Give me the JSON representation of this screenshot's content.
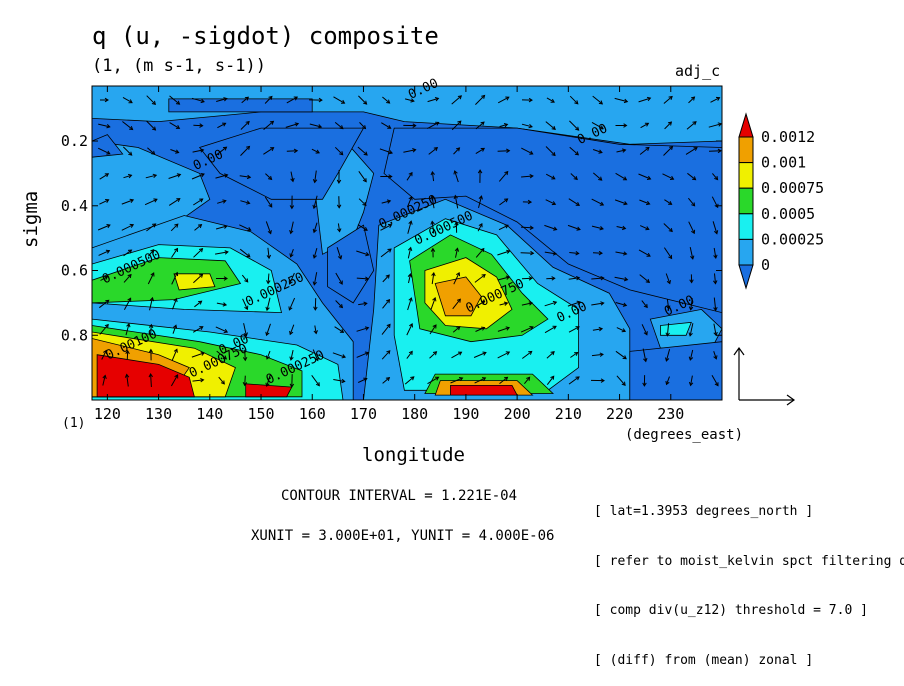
{
  "header": {
    "title": "q (u, -sigdot) composite",
    "units": "(1, (m s-1, s-1))",
    "tag": "adj_c"
  },
  "axes": {
    "xlabel": "longitude",
    "xunit": "(degrees_east)",
    "ylabel": "sigma",
    "scale_note": "(1)"
  },
  "footer": {
    "contour_interval": "CONTOUR INTERVAL = 1.221E-04",
    "xy_units": "XUNIT = 3.000E+01, YUNIT = 4.000E-06",
    "notes": [
      "[ lat=1.3953 degrees_north ]",
      "[ refer to moist_kelvin spct filtering data ]",
      "[ comp div(u_z12) threshold = 7.0 ]",
      "[ (diff) from (mean) zonal ]"
    ]
  },
  "colors": {
    "level_0": "#1a6fe0",
    "level_1": "#27a6f0",
    "level_2": "#19f0f0",
    "level_3": "#2ad82a",
    "level_4": "#f0f000",
    "level_5": "#f0a000",
    "level_6": "#e60000"
  },
  "chart_data": {
    "type": "heatmap",
    "title": "q (u, -sigdot) composite",
    "xlabel": "longitude",
    "ylabel": "sigma",
    "xlim": [
      117,
      240
    ],
    "ylim": [
      1.0,
      0.03
    ],
    "y_axis_inverted": true,
    "xticks": [
      120,
      130,
      140,
      150,
      160,
      170,
      180,
      190,
      200,
      210,
      220,
      230
    ],
    "yticks": [
      0.2,
      0.4,
      0.6,
      0.8
    ],
    "colorbar": {
      "levels": [
        "0",
        "0.00025",
        "0.0005",
        "0.00075",
        "0.001",
        "0.0012"
      ],
      "extends": "both"
    },
    "contour_labels": [
      {
        "text": "0.00",
        "x": 182,
        "y": 0.05
      },
      {
        "text": "0.00",
        "x": 215,
        "y": 0.19
      },
      {
        "text": "0.00",
        "x": 140,
        "y": 0.27
      },
      {
        "text": "0.000250",
        "x": 179,
        "y": 0.43
      },
      {
        "text": "0.000500",
        "x": 186,
        "y": 0.48
      },
      {
        "text": "0.000500",
        "x": 125,
        "y": 0.6
      },
      {
        "text": "0.000250",
        "x": 153,
        "y": 0.67
      },
      {
        "text": "0.000750",
        "x": 196,
        "y": 0.69
      },
      {
        "text": "0.00",
        "x": 211,
        "y": 0.74
      },
      {
        "text": "0.00",
        "x": 232,
        "y": 0.72
      },
      {
        "text": "0.00100",
        "x": 125,
        "y": 0.84
      },
      {
        "text": "0.000750",
        "x": 142,
        "y": 0.89
      },
      {
        "text": "0.00",
        "x": 145,
        "y": 0.84
      },
      {
        "text": "0.000250",
        "x": 157,
        "y": 0.91
      }
    ],
    "regions": [
      {
        "level": 1,
        "points": [
          [
            117,
            0.03
          ],
          [
            240,
            0.03
          ],
          [
            240,
            0.2
          ],
          [
            222,
            0.21
          ],
          [
            200,
            0.16
          ],
          [
            178,
            0.14
          ],
          [
            170,
            0.11
          ],
          [
            150,
            0.11
          ],
          [
            130,
            0.14
          ],
          [
            117,
            0.13
          ]
        ]
      },
      {
        "level": 1,
        "points": [
          [
            117,
            0.2
          ],
          [
            126,
            0.22
          ],
          [
            138,
            0.3
          ],
          [
            140,
            0.38
          ],
          [
            132,
            0.47
          ],
          [
            117,
            0.53
          ]
        ]
      },
      {
        "level": 1,
        "points": [
          [
            160,
            0.28
          ],
          [
            167,
            0.21
          ],
          [
            172,
            0.3
          ],
          [
            170,
            0.42
          ],
          [
            168,
            0.5
          ],
          [
            162,
            0.55
          ]
        ]
      },
      {
        "level": 1,
        "points": [
          [
            117,
            0.53
          ],
          [
            135,
            0.43
          ],
          [
            148,
            0.48
          ],
          [
            157,
            0.58
          ],
          [
            162,
            0.7
          ],
          [
            168,
            0.82
          ],
          [
            168,
            1.0
          ],
          [
            117,
            1.0
          ]
        ]
      },
      {
        "level": 1,
        "points": [
          [
            173,
            0.46
          ],
          [
            186,
            0.38
          ],
          [
            198,
            0.46
          ],
          [
            207,
            0.59
          ],
          [
            218,
            0.67
          ],
          [
            222,
            0.78
          ],
          [
            222,
            1.0
          ],
          [
            170,
            1.0
          ],
          [
            172,
            0.72
          ]
        ]
      },
      {
        "level": 1,
        "points": [
          [
            226,
            0.75
          ],
          [
            236,
            0.72
          ],
          [
            240,
            0.78
          ],
          [
            238,
            0.84
          ],
          [
            228,
            0.84
          ]
        ]
      },
      {
        "level": 2,
        "points": [
          [
            117,
            0.58
          ],
          [
            130,
            0.52
          ],
          [
            144,
            0.53
          ],
          [
            152,
            0.6
          ],
          [
            154,
            0.73
          ],
          [
            135,
            0.72
          ],
          [
            117,
            0.7
          ]
        ]
      },
      {
        "level": 2,
        "points": [
          [
            117,
            0.75
          ],
          [
            140,
            0.79
          ],
          [
            157,
            0.83
          ],
          [
            165,
            0.89
          ],
          [
            166,
            1.0
          ],
          [
            117,
            1.0
          ]
        ]
      },
      {
        "level": 2,
        "points": [
          [
            176,
            0.53
          ],
          [
            186,
            0.44
          ],
          [
            196,
            0.49
          ],
          [
            204,
            0.64
          ],
          [
            212,
            0.72
          ],
          [
            212,
            0.9
          ],
          [
            206,
            0.97
          ],
          [
            178,
            0.97
          ],
          [
            176,
            0.8
          ]
        ]
      },
      {
        "level": 2,
        "points": [
          [
            228,
            0.77
          ],
          [
            234,
            0.76
          ],
          [
            233,
            0.8
          ],
          [
            228,
            0.8
          ]
        ]
      },
      {
        "level": 3,
        "points": [
          [
            117,
            0.63
          ],
          [
            130,
            0.56
          ],
          [
            143,
            0.57
          ],
          [
            146,
            0.64
          ],
          [
            133,
            0.69
          ],
          [
            117,
            0.7
          ]
        ]
      },
      {
        "level": 3,
        "points": [
          [
            117,
            0.77
          ],
          [
            138,
            0.82
          ],
          [
            150,
            0.86
          ],
          [
            158,
            0.91
          ],
          [
            158,
            0.99
          ],
          [
            117,
            0.99
          ]
        ]
      },
      {
        "level": 3,
        "points": [
          [
            179,
            0.57
          ],
          [
            187,
            0.49
          ],
          [
            195,
            0.55
          ],
          [
            201,
            0.67
          ],
          [
            206,
            0.75
          ],
          [
            201,
            0.8
          ],
          [
            191,
            0.82
          ],
          [
            181,
            0.78
          ]
        ]
      },
      {
        "level": 3,
        "points": [
          [
            184,
            0.92
          ],
          [
            203,
            0.92
          ],
          [
            207,
            0.98
          ],
          [
            182,
            0.98
          ]
        ]
      },
      {
        "level": 4,
        "points": [
          [
            133,
            0.61
          ],
          [
            140,
            0.61
          ],
          [
            141,
            0.65
          ],
          [
            134,
            0.66
          ]
        ]
      },
      {
        "level": 4,
        "points": [
          [
            117,
            0.79
          ],
          [
            137,
            0.84
          ],
          [
            145,
            0.9
          ],
          [
            143,
            0.99
          ],
          [
            117,
            0.99
          ]
        ]
      },
      {
        "level": 4,
        "points": [
          [
            182,
            0.6
          ],
          [
            190,
            0.56
          ],
          [
            196,
            0.62
          ],
          [
            199,
            0.72
          ],
          [
            194,
            0.78
          ],
          [
            186,
            0.77
          ],
          [
            182,
            0.7
          ]
        ]
      },
      {
        "level": 5,
        "points": [
          [
            184,
            0.64
          ],
          [
            190,
            0.62
          ],
          [
            193,
            0.68
          ],
          [
            191,
            0.74
          ],
          [
            186,
            0.74
          ]
        ]
      },
      {
        "level": 5,
        "points": [
          [
            117,
            0.81
          ],
          [
            130,
            0.86
          ],
          [
            136,
            0.9
          ],
          [
            132,
            0.99
          ],
          [
            117,
            0.99
          ]
        ]
      },
      {
        "level": 5,
        "points": [
          [
            185,
            0.94
          ],
          [
            200,
            0.94
          ],
          [
            203,
            0.985
          ],
          [
            184,
            0.985
          ]
        ]
      },
      {
        "level": 6,
        "points": [
          [
            118,
            0.86
          ],
          [
            130,
            0.89
          ],
          [
            136,
            0.93
          ],
          [
            137,
            0.99
          ],
          [
            118,
            0.99
          ]
        ]
      },
      {
        "level": 6,
        "points": [
          [
            147,
            0.95
          ],
          [
            156,
            0.96
          ],
          [
            155,
            0.99
          ],
          [
            147,
            0.99
          ]
        ]
      },
      {
        "level": 6,
        "points": [
          [
            187,
            0.955
          ],
          [
            199,
            0.955
          ],
          [
            200,
            0.985
          ],
          [
            187,
            0.985
          ]
        ]
      },
      {
        "level": 0,
        "points": [
          [
            132,
            0.07
          ],
          [
            160,
            0.07
          ],
          [
            160,
            0.11
          ],
          [
            132,
            0.11
          ]
        ]
      },
      {
        "level": 0,
        "points": [
          [
            150,
            0.16
          ],
          [
            170,
            0.16
          ],
          [
            165,
            0.3
          ],
          [
            162,
            0.38
          ],
          [
            152,
            0.38
          ],
          [
            142,
            0.3
          ],
          [
            138,
            0.22
          ]
        ]
      },
      {
        "level": 0,
        "points": [
          [
            176,
            0.16
          ],
          [
            200,
            0.16
          ],
          [
            220,
            0.21
          ],
          [
            240,
            0.22
          ],
          [
            240,
            0.73
          ],
          [
            222,
            0.66
          ],
          [
            210,
            0.58
          ],
          [
            200,
            0.45
          ],
          [
            190,
            0.37
          ],
          [
            180,
            0.38
          ],
          [
            174,
            0.3
          ]
        ]
      },
      {
        "level": 0,
        "points": [
          [
            163,
            0.53
          ],
          [
            170,
            0.46
          ],
          [
            172,
            0.6
          ],
          [
            168,
            0.7
          ],
          [
            163,
            0.65
          ]
        ]
      },
      {
        "level": 0,
        "points": [
          [
            222,
            0.85
          ],
          [
            240,
            0.82
          ],
          [
            240,
            1.0
          ],
          [
            222,
            1.0
          ]
        ]
      },
      {
        "level": 0,
        "points": [
          [
            117,
            0.25
          ],
          [
            123,
            0.24
          ],
          [
            120,
            0.18
          ],
          [
            117,
            0.2
          ]
        ]
      }
    ]
  }
}
